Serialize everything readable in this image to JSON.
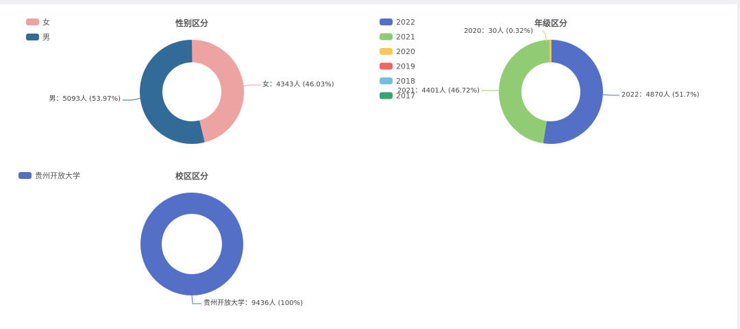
{
  "chart_data": [
    {
      "type": "pie",
      "title": "性别区分",
      "series": [
        {
          "name": "女",
          "value": 4343,
          "label": "女：4343人 (46.03%)",
          "color": "#eea3a3"
        },
        {
          "name": "男",
          "value": 5093,
          "label": "男：5093人 (53.97%)",
          "color": "#336b98"
        }
      ],
      "legend": [
        "女",
        "男"
      ],
      "legend_placement": "top-left"
    },
    {
      "type": "pie",
      "title": "年级区分",
      "series": [
        {
          "name": "2022",
          "value": 4870,
          "label": "2022：4870人 (51.7%)",
          "color": "#5470c6"
        },
        {
          "name": "2021",
          "value": 4401,
          "label": "2021：4401人 (46.72%)",
          "color": "#91cc75"
        },
        {
          "name": "2020",
          "value": 30,
          "label": "2020：30人 (0.32%)",
          "color": "#fac858"
        },
        {
          "name": "2019",
          "value": 0,
          "label": "",
          "color": "#ee6666"
        },
        {
          "name": "2018",
          "value": 0,
          "label": "",
          "color": "#73c0de"
        },
        {
          "name": "2017",
          "value": 0,
          "label": "",
          "color": "#3ba272"
        }
      ],
      "legend": [
        "2022",
        "2021",
        "2020",
        "2019",
        "2018",
        "2017"
      ],
      "legend_placement": "top-left"
    },
    {
      "type": "pie",
      "title": "校区区分",
      "series": [
        {
          "name": "贵州开放大学",
          "value": 9436,
          "label": "贵州开放大学：9436人 (100%)",
          "color": "#5470c6"
        }
      ],
      "legend": [
        "贵州开放大学"
      ],
      "legend_placement": "top-left"
    }
  ]
}
